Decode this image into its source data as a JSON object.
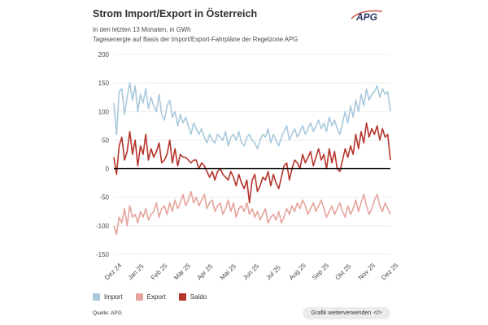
{
  "header": {
    "title": "Strom Import/Export in Österreich",
    "subtitle_1": "In den letzten 13 Monaten, in GWh",
    "subtitle_2": "Tagesenergie auf Basis der Import/Export-Fahrpläne der Regelzone APG",
    "logo_text": "APG"
  },
  "footer": {
    "source": "Quelle: APG",
    "share_label": "Grafik weiterverwenden",
    "share_icon": "code-brackets-icon"
  },
  "colors": {
    "import": "#a9c9dc",
    "export": "#e5a49c",
    "saldo": "#b5342b",
    "zero_line": "#000000",
    "grid": "#e6e6e6",
    "logo_red": "#c0392b"
  },
  "chart_data": {
    "type": "line",
    "title": "Strom Import/Export in Österreich",
    "xlabel": "",
    "ylabel": "GWh",
    "ylim": [
      -150,
      200
    ],
    "yticks": [
      200,
      150,
      100,
      50,
      0,
      -50,
      -100,
      -150
    ],
    "grid": true,
    "legend_position": "bottom-left",
    "x_tick_labels": [
      "Dez 24",
      "Jan 25",
      "Feb 25",
      "Mär 25",
      "Apr 25",
      "Mai 25",
      "Jun 25",
      "Jul 25",
      "Aug 25",
      "Sep 25",
      "Okt 25",
      "Nov 25",
      "Dez 25"
    ],
    "series": [
      {
        "name": "Import",
        "key": "import",
        "values": [
          115,
          60,
          135,
          140,
          95,
          125,
          150,
          120,
          145,
          100,
          130,
          115,
          140,
          105,
          125,
          110,
          100,
          130,
          95,
          85,
          110,
          120,
          90,
          100,
          75,
          95,
          80,
          90,
          75,
          60,
          80,
          70,
          60,
          70,
          55,
          45,
          60,
          50,
          45,
          60,
          55,
          50,
          65,
          40,
          55,
          60,
          50,
          65,
          45,
          40,
          55,
          60,
          50,
          45,
          35,
          50,
          60,
          55,
          70,
          45,
          60,
          50,
          40,
          55,
          65,
          75,
          50,
          60,
          70,
          55,
          65,
          75,
          60,
          70,
          80,
          65,
          75,
          85,
          70,
          80,
          65,
          90,
          75,
          85,
          70,
          60,
          80,
          100,
          80,
          110,
          90,
          120,
          100,
          130,
          110,
          140,
          120,
          130,
          135,
          145,
          125,
          140,
          130,
          135,
          100
        ]
      },
      {
        "name": "Export",
        "key": "export",
        "values": [
          -100,
          -115,
          -85,
          -95,
          -70,
          -100,
          -65,
          -85,
          -80,
          -95,
          -75,
          -85,
          -70,
          -90,
          -80,
          -75,
          -60,
          -85,
          -70,
          -65,
          -80,
          -60,
          -75,
          -55,
          -70,
          -60,
          -45,
          -65,
          -55,
          -40,
          -60,
          -50,
          -65,
          -55,
          -45,
          -70,
          -60,
          -55,
          -75,
          -65,
          -60,
          -80,
          -70,
          -55,
          -75,
          -60,
          -85,
          -70,
          -65,
          -75,
          -60,
          -80,
          -70,
          -85,
          -75,
          -90,
          -80,
          -70,
          -95,
          -85,
          -80,
          -90,
          -75,
          -95,
          -85,
          -70,
          -80,
          -65,
          -75,
          -60,
          -70,
          -55,
          -65,
          -80,
          -70,
          -60,
          -75,
          -65,
          -55,
          -70,
          -85,
          -75,
          -65,
          -80,
          -70,
          -60,
          -75,
          -85,
          -65,
          -80,
          -70,
          -55,
          -75,
          -60,
          -45,
          -65,
          -80,
          -70,
          -55,
          -45,
          -65,
          -75,
          -60,
          -70,
          -80
        ]
      },
      {
        "name": "Saldo",
        "key": "saldo",
        "values": [
          20,
          -10,
          40,
          55,
          15,
          30,
          65,
          25,
          50,
          5,
          40,
          25,
          60,
          15,
          35,
          20,
          30,
          45,
          10,
          15,
          25,
          50,
          10,
          35,
          5,
          25,
          20,
          20,
          15,
          10,
          15,
          15,
          0,
          10,
          5,
          -5,
          -15,
          -5,
          -20,
          -5,
          0,
          -10,
          -15,
          -20,
          -5,
          -15,
          -30,
          -10,
          -25,
          -35,
          -20,
          -60,
          -20,
          -10,
          -40,
          -30,
          -15,
          -20,
          -5,
          -30,
          -10,
          -25,
          -35,
          -15,
          5,
          10,
          -20,
          0,
          15,
          10,
          0,
          25,
          10,
          20,
          30,
          5,
          20,
          35,
          15,
          25,
          0,
          35,
          10,
          30,
          0,
          -5,
          15,
          35,
          20,
          40,
          25,
          60,
          35,
          65,
          45,
          80,
          55,
          70,
          60,
          75,
          50,
          70,
          55,
          60,
          15
        ]
      }
    ]
  }
}
